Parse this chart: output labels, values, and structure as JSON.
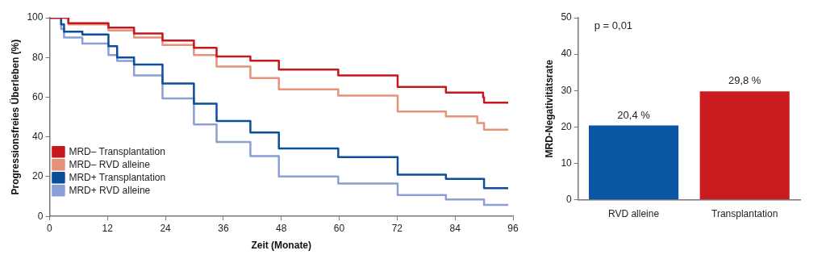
{
  "chart_data": [
    {
      "type": "step",
      "xlabel": "Zeit (Monate)",
      "ylabel": "Progressionsfreies Überleben (%)",
      "xlim": [
        0,
        96
      ],
      "ylim": [
        0,
        100
      ],
      "xticks": [
        0,
        12,
        24,
        36,
        48,
        60,
        72,
        84,
        96
      ],
      "yticks": [
        0,
        20,
        40,
        60,
        80,
        100
      ],
      "legend": "bottom left",
      "series": [
        {
          "name": "MRD– Transplantation",
          "color": "#c8161d",
          "x": [
            0,
            3.9,
            12.2,
            17.5,
            23.4,
            29.9,
            34.6,
            41.6,
            47.5,
            59.8,
            72.1,
            82.1,
            89.8,
            90,
            95
          ],
          "values": [
            100,
            97.3,
            95,
            92.1,
            88.5,
            84.9,
            80.5,
            78.4,
            73.9,
            71,
            65.2,
            62.3,
            60,
            57.2,
            57.2
          ]
        },
        {
          "name": "MRD– RVD alleine",
          "color": "#e8917a",
          "x": [
            0,
            3.9,
            12.2,
            17.5,
            23.4,
            29.9,
            34.6,
            41.6,
            47.5,
            59.8,
            72.1,
            82.1,
            88.6,
            90,
            95
          ],
          "values": [
            100,
            96.6,
            93.6,
            90,
            86.3,
            81.2,
            75.4,
            69.6,
            64,
            60.8,
            52.8,
            50.3,
            47,
            43.6,
            43.6
          ]
        },
        {
          "name": "MRD+ Transplantation",
          "color": "#0b4f9c",
          "x": [
            0,
            2.4,
            3,
            6.8,
            12.2,
            14,
            17.5,
            23.4,
            29.9,
            34.6,
            41.6,
            47.5,
            59.8,
            72.1,
            82.1,
            90,
            95
          ],
          "values": [
            100,
            96.6,
            93,
            91.6,
            85.7,
            80,
            76.4,
            66.9,
            56.7,
            48,
            42.2,
            34.2,
            29.8,
            21,
            18.9,
            14.2,
            14.2
          ]
        },
        {
          "name": "MRD+ RVD alleine",
          "color": "#8b9fd4",
          "x": [
            0,
            2.4,
            3,
            6.8,
            12.2,
            14,
            17.5,
            23.4,
            29.9,
            34.6,
            41.6,
            47.5,
            59.8,
            72.1,
            82.1,
            90,
            95
          ],
          "values": [
            100,
            94.3,
            90,
            87,
            81.2,
            78.3,
            71,
            59.4,
            46.3,
            37.5,
            30.3,
            20.1,
            16.5,
            10.7,
            8.5,
            5.8,
            5.8
          ]
        }
      ]
    },
    {
      "type": "bar",
      "ylabel": "MRD-Negativitätsrate",
      "categories": [
        "RVD alleine",
        "Transplantation"
      ],
      "values": [
        20.4,
        29.8
      ],
      "colors": [
        "#0b55a5",
        "#cc1b1f"
      ],
      "value_labels": [
        "20,4 %",
        "29,8 %"
      ],
      "ylim": [
        0,
        50
      ],
      "yticks": [
        0,
        10,
        20,
        30,
        40,
        50
      ],
      "annotations": [
        "p = 0,01"
      ]
    }
  ]
}
